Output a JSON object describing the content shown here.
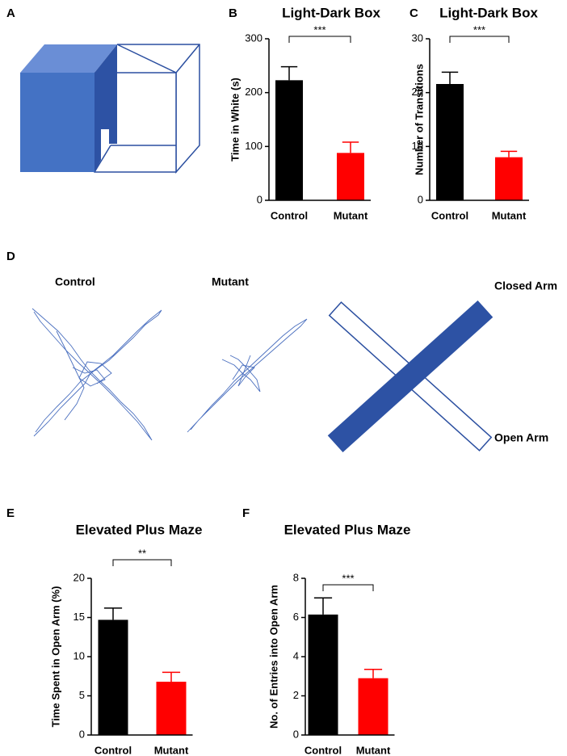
{
  "panel_labels": [
    "A",
    "B",
    "C",
    "D",
    "E",
    "F"
  ],
  "maze": {
    "control_label": "Control",
    "mutant_label": "Mutant",
    "closed_arm": "Closed Arm",
    "open_arm": "Open Arm"
  },
  "chart_data": [
    {
      "type": "bar",
      "title": "Light-Dark Box",
      "y_label": "Time in White (s)",
      "categories": [
        "Control",
        "Mutant"
      ],
      "values": [
        223,
        88
      ],
      "errors": [
        25,
        20
      ],
      "colors": [
        "#000000",
        "#ff0000"
      ],
      "ylim": [
        0,
        300
      ],
      "yticks": [
        0,
        100,
        200,
        300
      ],
      "significance": "***"
    },
    {
      "type": "bar",
      "title": "Light-Dark Box",
      "y_label": "Number of Transitions",
      "categories": [
        "Control",
        "Mutant"
      ],
      "values": [
        21.6,
        8
      ],
      "errors": [
        2.2,
        1.1
      ],
      "colors": [
        "#000000",
        "#ff0000"
      ],
      "ylim": [
        0,
        30
      ],
      "yticks": [
        0,
        10,
        20,
        30
      ],
      "significance": "***"
    },
    {
      "type": "bar",
      "title": "Elevated Plus Maze",
      "y_label": "Time Spent in Open Arm (%)",
      "categories": [
        "Control",
        "Mutant"
      ],
      "values": [
        14.7,
        6.8
      ],
      "errors": [
        1.5,
        1.2
      ],
      "colors": [
        "#000000",
        "#ff0000"
      ],
      "ylim": [
        0,
        20
      ],
      "yticks": [
        0,
        5,
        10,
        15,
        20
      ],
      "significance": "**"
    },
    {
      "type": "bar",
      "title": "Elevated Plus Maze",
      "y_label": "No. of Entries into Open Arm",
      "categories": [
        "Control",
        "Mutant"
      ],
      "values": [
        6.15,
        2.9
      ],
      "errors": [
        0.85,
        0.45
      ],
      "colors": [
        "#000000",
        "#ff0000"
      ],
      "ylim": [
        0,
        8
      ],
      "yticks": [
        0,
        2,
        4,
        6,
        8
      ],
      "significance": "***"
    }
  ]
}
